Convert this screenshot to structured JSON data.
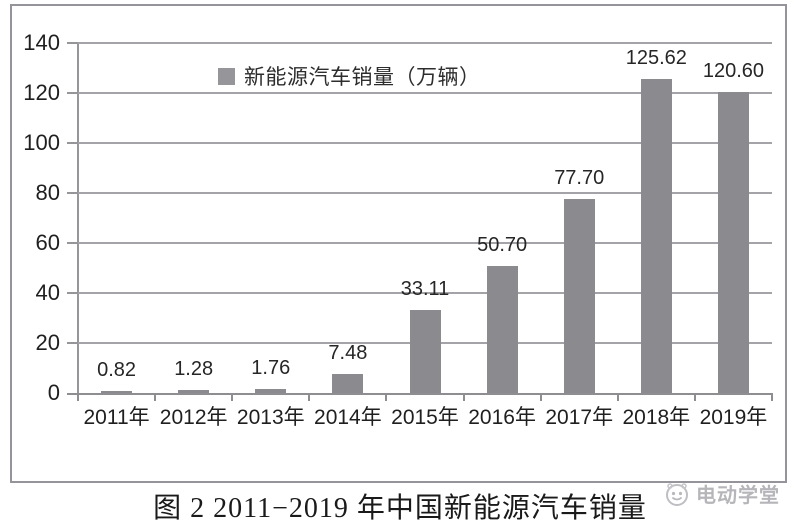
{
  "chart_data": {
    "type": "bar",
    "title": "图 2  2011−2019 年中国新能源汽车销量",
    "categories": [
      "2011年",
      "2012年",
      "2013年",
      "2014年",
      "2015年",
      "2016年",
      "2017年",
      "2018年",
      "2019年"
    ],
    "values": [
      0.82,
      1.28,
      1.76,
      7.48,
      33.11,
      50.7,
      77.7,
      125.62,
      120.6
    ],
    "value_labels": [
      "0.82",
      "1.28",
      "1.76",
      "7.48",
      "33.11",
      "50.70",
      "77.70",
      "125.62",
      "120.60"
    ],
    "series_name": "新能源汽车销量（万辆）",
    "xlabel": "",
    "ylabel": "",
    "ylim": [
      0,
      140
    ],
    "yticks": [
      0,
      20,
      40,
      60,
      80,
      100,
      120,
      140
    ],
    "grid": true,
    "legend_position": "top-center",
    "bar_color": "#8b8b8f"
  },
  "legend": {
    "label": "新能源汽车销量（万辆）"
  },
  "caption": {
    "text": "图 2  2011−2019 年中国新能源汽车销量"
  },
  "watermark": {
    "text": "电动学堂"
  },
  "colors": {
    "bar": "#8b8b8f",
    "gridline": "#a4a4a8",
    "axis": "#8e8e92",
    "frame_border": "#94949a",
    "text": "#1f1f1f",
    "watermark": "#b3b3b7",
    "background": "#ffffff"
  }
}
